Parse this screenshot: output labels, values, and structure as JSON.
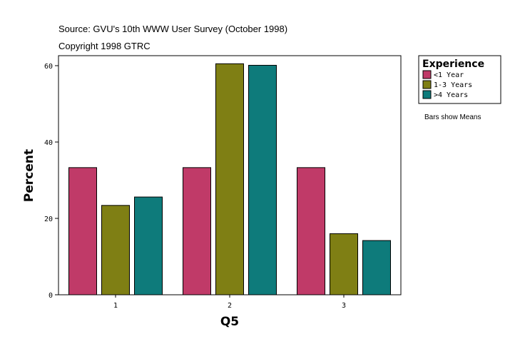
{
  "source_line": "Source: GVU's 10th WWW User Survey (October 1998)",
  "copyright_line": "Copyright 1998 GTRC",
  "note": "Bars show Means",
  "chart_data": {
    "type": "bar",
    "xlabel": "Q5",
    "ylabel": "Percent",
    "ylim": [
      0,
      60
    ],
    "yticks": [
      0,
      20,
      40,
      60
    ],
    "categories": [
      "1",
      "2",
      "3"
    ],
    "legend_title": "Experience",
    "legend_position": "top-right, outside plot",
    "series": [
      {
        "name": "<1 Year",
        "color": "#c03a68",
        "values": [
          33.3,
          33.3,
          33.3
        ]
      },
      {
        "name": "1-3 Years",
        "color": "#7f7f14",
        "values": [
          23.4,
          60.5,
          16.0
        ]
      },
      {
        "name": ">4 Years",
        "color": "#0e7b7b",
        "values": [
          25.6,
          60.1,
          14.2
        ]
      }
    ]
  }
}
